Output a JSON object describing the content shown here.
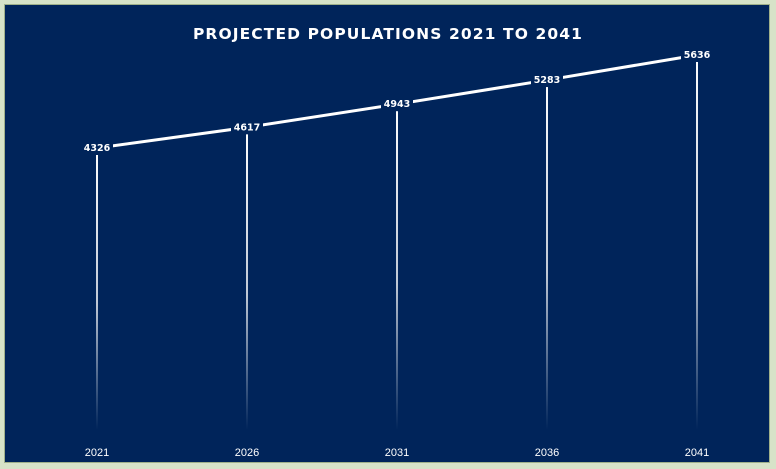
{
  "chart_data": {
    "type": "line",
    "title": "PROJECTED POPULATIONS 2021 TO 2041",
    "categories": [
      "2021",
      "2026",
      "2031",
      "2036",
      "2041"
    ],
    "series": [
      {
        "values": [
          4326,
          4617,
          4943,
          5283,
          5636
        ]
      }
    ],
    "drop_lines": true,
    "grid": false,
    "legend": "none"
  },
  "colors": {
    "background": "#00245a",
    "line": "#ffffff",
    "frame": "#d7e3c8"
  }
}
